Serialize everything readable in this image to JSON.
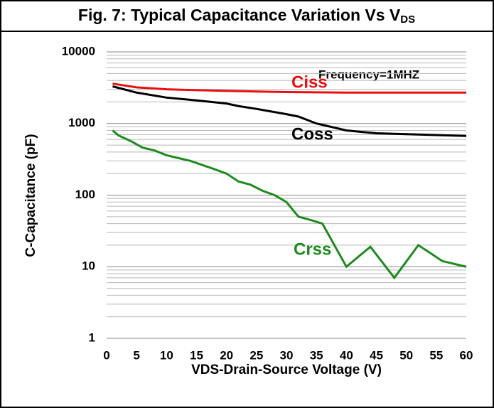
{
  "chart_data": {
    "type": "line",
    "title": "Fig. 7: Typical Capacitance Variation Vs V",
    "title_subscript": "DS",
    "x_label": "VDS-Drain-Source Voltage (V)",
    "y_label": "C-Capacitance (pF)",
    "annotation": "Frequency=1MHZ",
    "xlim": [
      0,
      60
    ],
    "xticks": [
      0,
      5,
      10,
      15,
      20,
      25,
      30,
      35,
      40,
      45,
      50,
      55,
      60
    ],
    "ylim": [
      1,
      10000
    ],
    "yticks": [
      1,
      10,
      100,
      1000,
      10000
    ],
    "log_y": true,
    "grid": true,
    "minor_grid": true,
    "series": [
      {
        "name": "Ciss",
        "color": "#e81010",
        "x": [
          1,
          5,
          10,
          20,
          30,
          40,
          50,
          60
        ],
        "values": [
          3600,
          3200,
          3000,
          2850,
          2750,
          2700,
          2700,
          2700
        ]
      },
      {
        "name": "Coss",
        "color": "#000000",
        "x": [
          1,
          5,
          10,
          15,
          20,
          22,
          25,
          30,
          32,
          35,
          40,
          45,
          50,
          55,
          60
        ],
        "values": [
          3300,
          2700,
          2300,
          2100,
          1900,
          1750,
          1600,
          1350,
          1250,
          1000,
          800,
          730,
          710,
          690,
          670
        ]
      },
      {
        "name": "Crss",
        "color": "#1e8a1e",
        "x": [
          1,
          2,
          4,
          6,
          8,
          10,
          14,
          18,
          20,
          22,
          24,
          26,
          28,
          30,
          32,
          34,
          36,
          40,
          44,
          48,
          52,
          56,
          60
        ],
        "values": [
          800,
          680,
          570,
          460,
          420,
          360,
          300,
          230,
          200,
          155,
          140,
          115,
          100,
          80,
          50,
          45,
          40,
          10,
          19,
          7,
          20,
          12,
          10
        ]
      }
    ]
  }
}
